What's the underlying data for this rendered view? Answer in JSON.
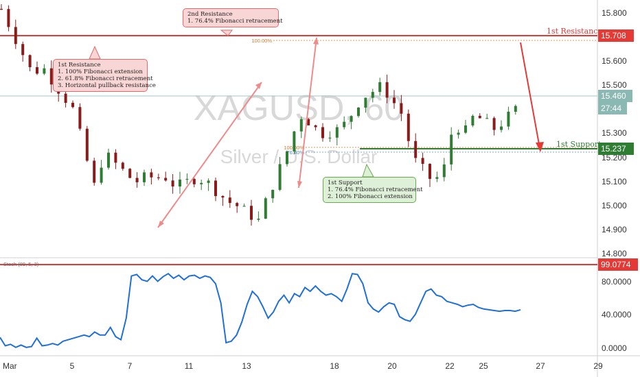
{
  "colors": {
    "accent_red": "#e53935",
    "accent_green": "#2e7d32",
    "candle_up": "#2e7d32",
    "candle_down": "#8b1a1a",
    "stoch_line": "#1e6fd9",
    "watermark": "#d9d9d9",
    "axis_text": "#333333"
  },
  "watermark": {
    "symbol": "XAGUSD, 60",
    "name": "Silver / U.S. Dollar"
  },
  "price_pane": {
    "ticks": [
      "15.800",
      "15.700",
      "15.600",
      "15.500",
      "15.400",
      "15.300",
      "15.200",
      "15.100",
      "15.000",
      "14.900",
      "14.800"
    ],
    "current_price": "15.460",
    "countdown": "27:44",
    "resistance": {
      "label": "1st Resistance",
      "value": "15.708"
    },
    "support": {
      "label": "1st Support",
      "value": "15.237"
    },
    "fib_labels": {
      "upper": "100.00%",
      "lower_a": "100.00%",
      "lower_b": "76.40%"
    }
  },
  "stoch_pane": {
    "title": "Stoch (89, 5, 3)",
    "ticks": [
      "80.0000",
      "40.0000",
      "0.0000"
    ],
    "level": "99.0774"
  },
  "x_axis": {
    "labels": [
      "Mar",
      "5",
      "7",
      "11",
      "13",
      "18",
      "20",
      "22",
      "25",
      "27",
      "29"
    ]
  },
  "notes": {
    "res1": {
      "title": "1st Resistance",
      "lines": [
        "1. 100% Fibonacci extension",
        "2. 61.8% Fibonacci retracement",
        "3. Horizontal pullback resistance"
      ]
    },
    "res2": {
      "title": "2nd Resistance",
      "lines": [
        "1. 76.4% Fibonacci retracement"
      ]
    },
    "sup1": {
      "title": "1st Support",
      "lines": [
        "1. 76.4% Fibonacci retracement",
        "2. 100% Fibonacci extension"
      ]
    }
  },
  "chart_data": [
    {
      "type": "candlestick",
      "title": "XAGUSD, 60",
      "subtitle": "Silver / U.S. Dollar",
      "ylim": [
        14.8,
        15.85
      ],
      "x_labels": [
        "Mar",
        "5",
        "7",
        "11",
        "13",
        "18",
        "20",
        "22",
        "25",
        "27",
        "29"
      ],
      "x": [
        0,
        3,
        4,
        7,
        9,
        10,
        13,
        14,
        16,
        17,
        19,
        20,
        22,
        23,
        25,
        26,
        28,
        29,
        30,
        31,
        33,
        34,
        35,
        37,
        39,
        40,
        42,
        43,
        44,
        45,
        46,
        48,
        50
      ],
      "close": [
        15.82,
        15.55,
        15.58,
        15.4,
        15.08,
        15.22,
        15.1,
        15.12,
        15.12,
        15.08,
        15.12,
        15.1,
        15.02,
        15.0,
        14.94,
        15.05,
        15.25,
        15.38,
        15.35,
        15.3,
        15.32,
        15.38,
        15.45,
        15.5,
        15.38,
        15.2,
        15.1,
        15.15,
        15.35,
        15.3,
        15.38,
        15.32,
        15.4
      ],
      "levels": {
        "first_resistance": 15.708,
        "first_support": 15.237,
        "current": 15.46
      }
    },
    {
      "type": "line",
      "title": "Stoch (89, 5, 3)",
      "ylim": [
        -10,
        105
      ],
      "series": [
        {
          "x": [
            0,
            1,
            2,
            3,
            4,
            5,
            6,
            7,
            8,
            9,
            10,
            11,
            12,
            13,
            14,
            15,
            16,
            17,
            18,
            19,
            20,
            21,
            22,
            23,
            24,
            25,
            26,
            27,
            28,
            29,
            30,
            31,
            32,
            33,
            34,
            35,
            36,
            37,
            38,
            39,
            40,
            41,
            42,
            43,
            44,
            45,
            46,
            47,
            48,
            49,
            50,
            51,
            52,
            53,
            54,
            55,
            56,
            57,
            58,
            59,
            60,
            61,
            62,
            63,
            64,
            65,
            66,
            67,
            68,
            69,
            70,
            71,
            72,
            73,
            74,
            75,
            76,
            77,
            78,
            79,
            80,
            81,
            82,
            83,
            84,
            85,
            86,
            87,
            88,
            89,
            90,
            91,
            92,
            93,
            94,
            95,
            96,
            97,
            98,
            99
          ],
          "values": [
            15,
            4,
            6,
            2,
            5,
            2,
            3,
            14,
            4,
            5,
            7,
            5,
            10,
            12,
            14,
            16,
            18,
            16,
            22,
            18,
            18,
            28,
            16,
            12,
            40,
            95,
            97,
            90,
            88,
            95,
            88,
            94,
            98,
            92,
            96,
            90,
            95,
            96,
            92,
            95,
            93,
            85,
            60,
            8,
            10,
            18,
            35,
            58,
            75,
            68,
            55,
            40,
            48,
            62,
            70,
            60,
            72,
            68,
            80,
            75,
            82,
            75,
            70,
            72,
            68,
            62,
            78,
            98,
            97,
            85,
            60,
            52,
            48,
            55,
            60,
            58,
            42,
            38,
            36,
            45,
            60,
            75,
            78,
            70,
            68,
            62,
            60,
            58,
            55,
            57,
            58,
            54,
            52,
            51,
            50,
            49,
            50,
            50,
            49,
            51
          ]
        }
      ],
      "levels": {
        "upper": 99.0774
      }
    }
  ]
}
